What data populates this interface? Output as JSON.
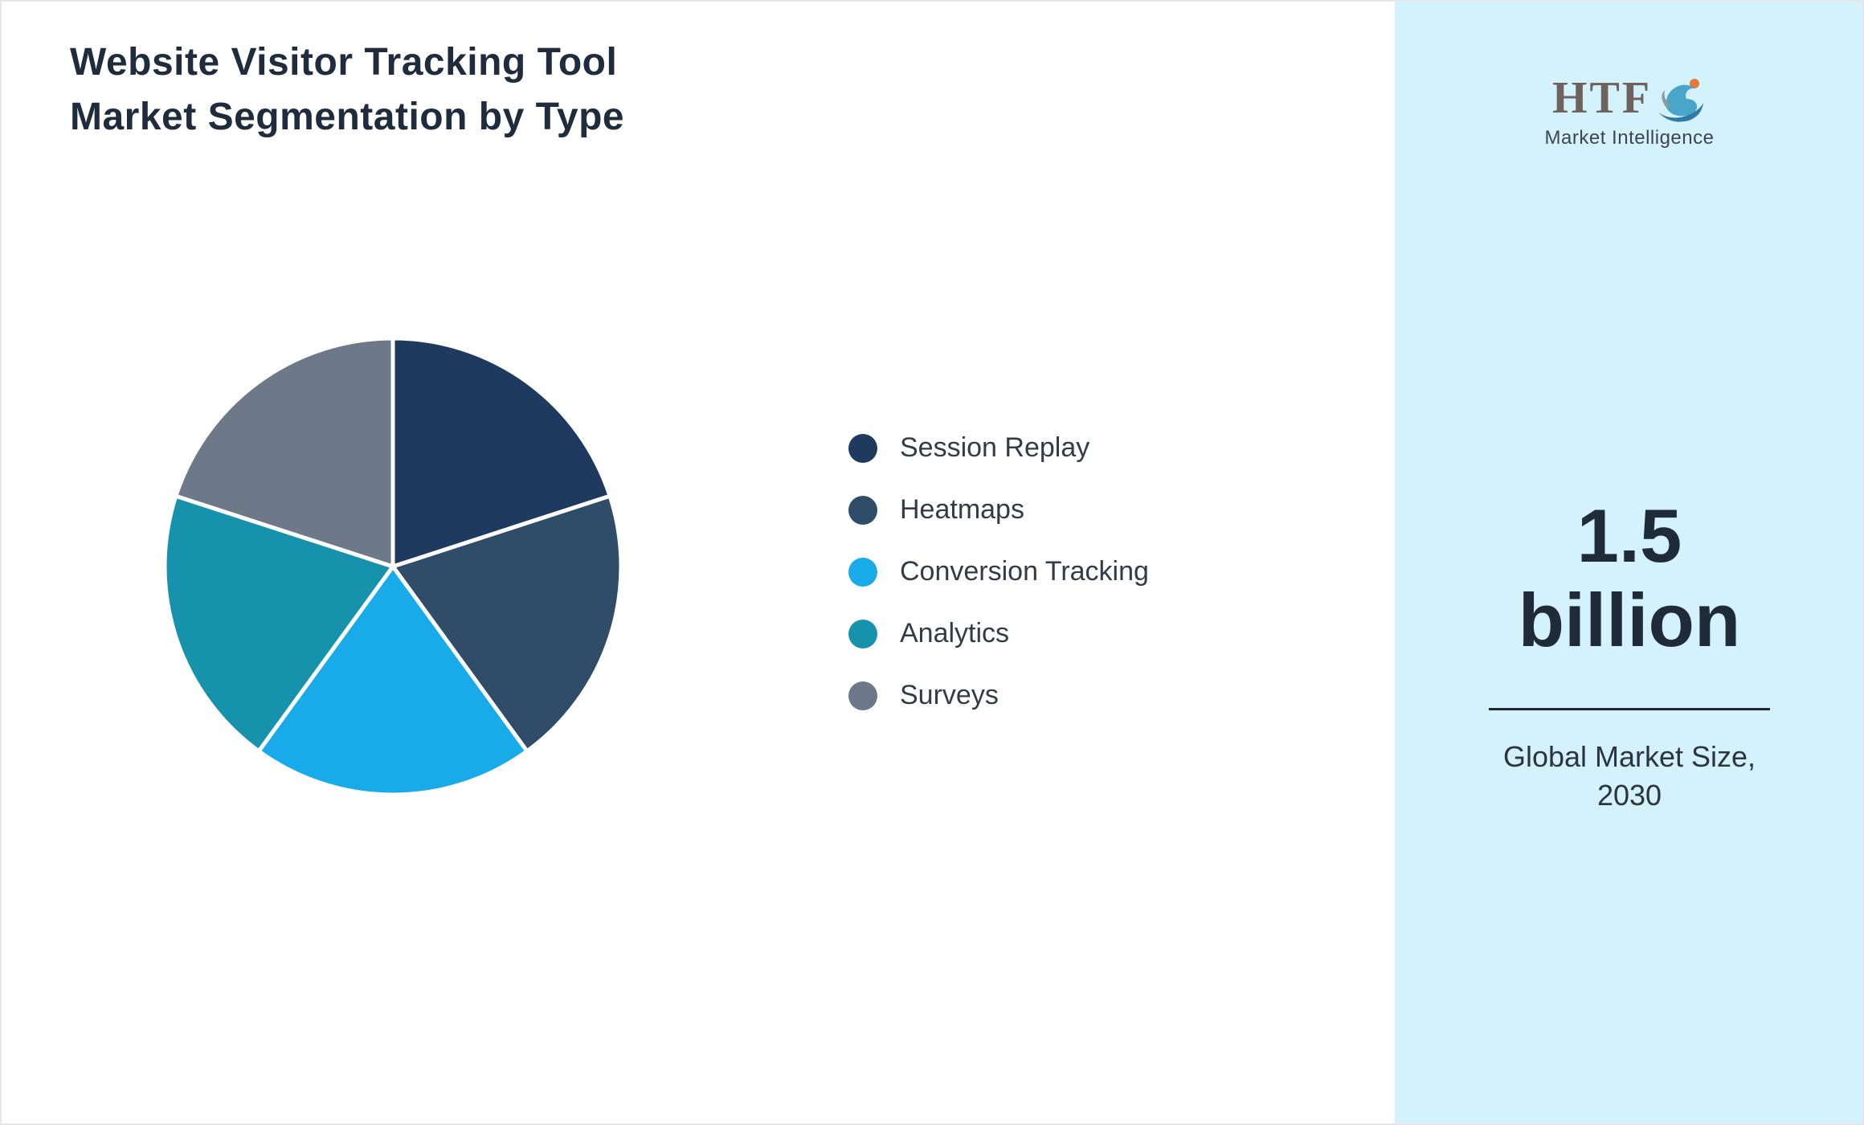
{
  "header": {
    "title": "Website Visitor Tracking Tool\nMarket Segmentation by Type"
  },
  "chart_data": {
    "type": "pie",
    "title": "Website Visitor Tracking Tool Market Segmentation by Type",
    "legend_position": "right",
    "start_angle_deg": 0,
    "direction": "clockwise",
    "segments": [
      {
        "label": "Session Replay",
        "value": 20,
        "color": "#1f3a5f"
      },
      {
        "label": "Heatmaps",
        "value": 20,
        "color": "#2f4c69"
      },
      {
        "label": "Conversion Tracking",
        "value": 20,
        "color": "#18aae9"
      },
      {
        "label": "Analytics",
        "value": 20,
        "color": "#1692ad"
      },
      {
        "label": "Surveys",
        "value": 20,
        "color": "#6d7888"
      }
    ]
  },
  "sidebar": {
    "background_color": "#d4f2fb",
    "logo_text": "HTF",
    "logo_subtext": "Market Intelligence",
    "value_line1": "1.5",
    "value_line2": "billion",
    "caption": "Global Market Size,\n2030"
  }
}
